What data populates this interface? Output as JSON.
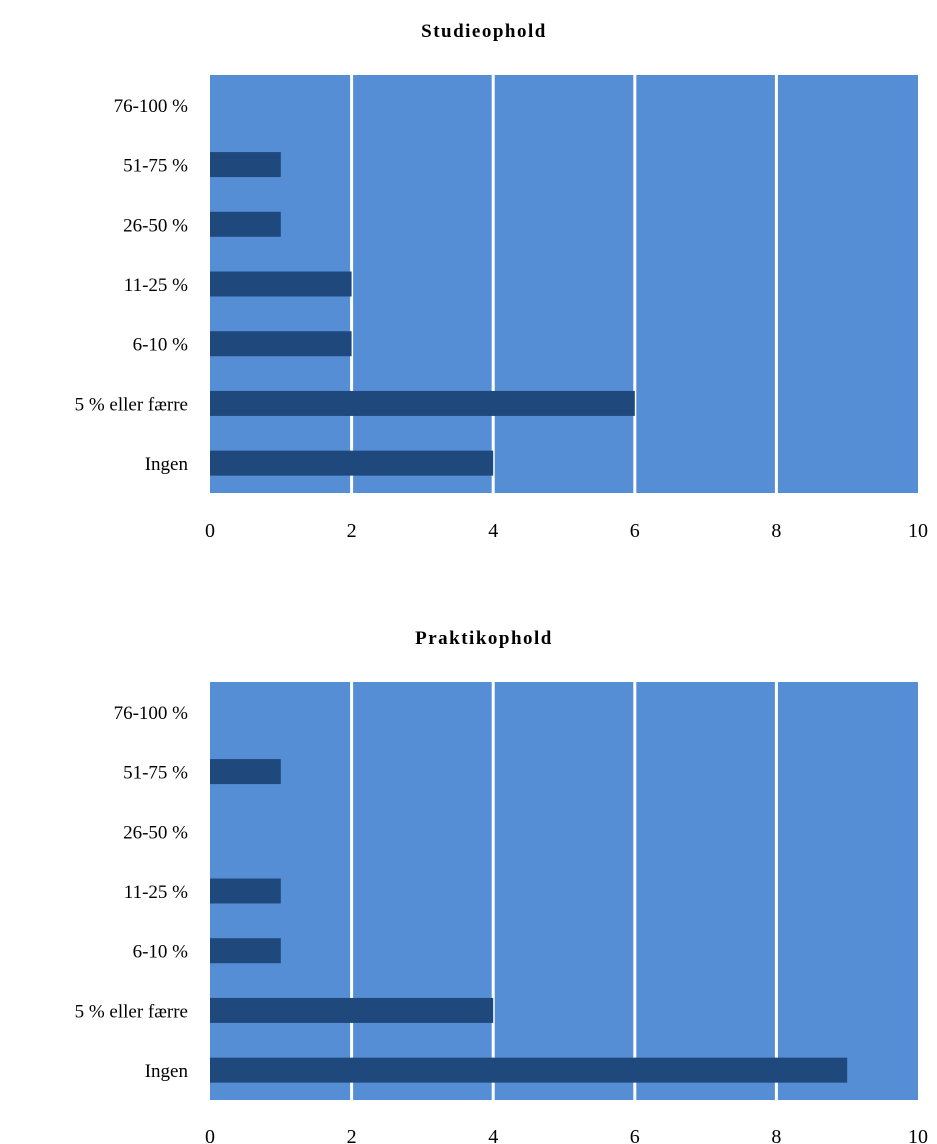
{
  "colors": {
    "plot_background": "#558ED5",
    "bar": "#1F497D",
    "gridline": "#FFFFFF",
    "text": "#000000"
  },
  "chart_data": [
    {
      "type": "bar",
      "orientation": "horizontal",
      "title": "Studieophold",
      "categories": [
        "76-100 %",
        "51-75 %",
        "26-50 %",
        "11-25 %",
        "6-10 %",
        "5 % eller færre",
        "Ingen"
      ],
      "values": [
        0,
        1,
        1,
        2,
        2,
        6,
        4
      ],
      "xlim": [
        0,
        10
      ],
      "xticks": [
        "0",
        "2",
        "4",
        "6",
        "8",
        "10"
      ],
      "xlabel": "",
      "ylabel": "",
      "grid": true,
      "legend": "none"
    },
    {
      "type": "bar",
      "orientation": "horizontal",
      "title": "Praktikophold",
      "categories": [
        "76-100 %",
        "51-75 %",
        "26-50 %",
        "11-25 %",
        "6-10 %",
        "5 % eller færre",
        "Ingen"
      ],
      "values": [
        0,
        1,
        0,
        1,
        1,
        4,
        9
      ],
      "xlim": [
        0,
        10
      ],
      "xticks": [
        "0",
        "2",
        "4",
        "6",
        "8",
        "10"
      ],
      "xlabel": "",
      "ylabel": "",
      "grid": true,
      "legend": "none"
    }
  ]
}
